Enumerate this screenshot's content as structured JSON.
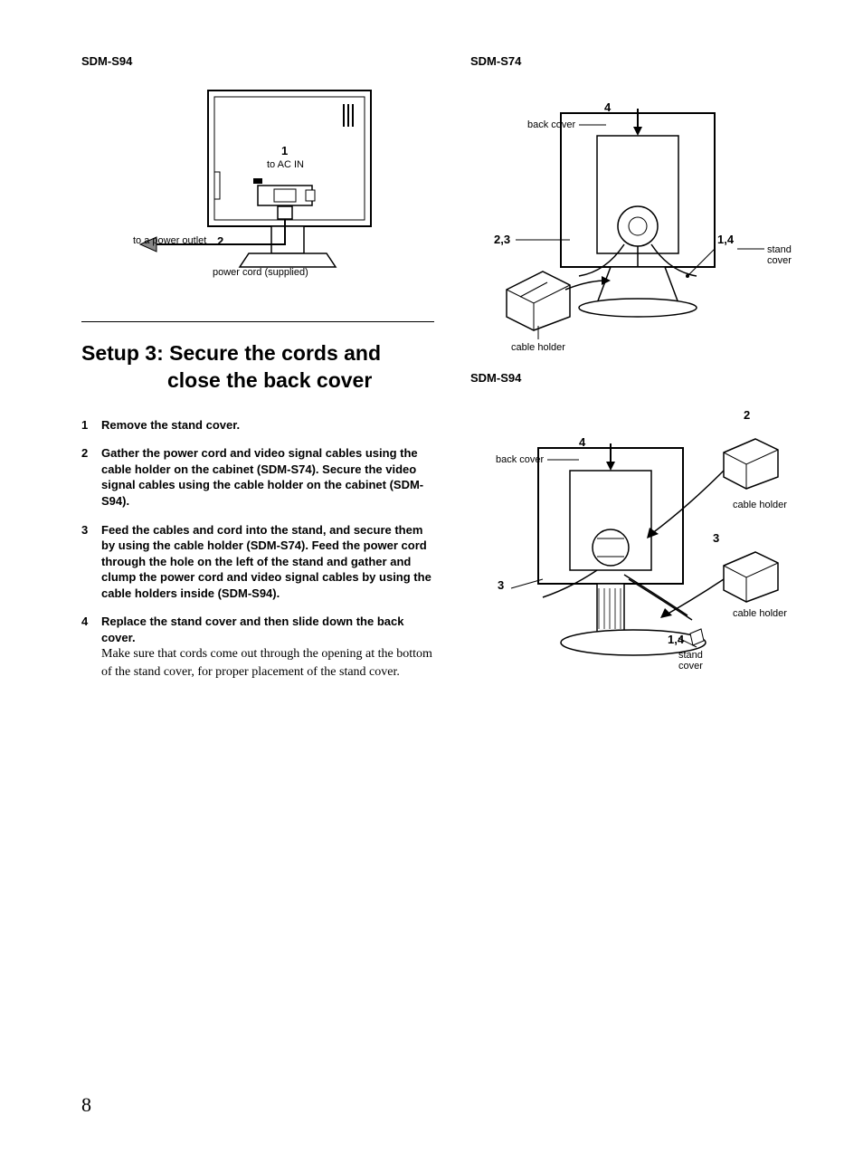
{
  "page_number": "8",
  "left": {
    "model": "SDM-S94",
    "fig1": {
      "num1": "1",
      "to_ac_in": "to AC IN",
      "num2": "2",
      "to_outlet": "to a power outlet",
      "power_cord": "power cord (supplied)"
    },
    "setup_title_line1": "Setup 3: Secure the cords and",
    "setup_title_line2": "close the back cover",
    "steps": [
      {
        "num": "1",
        "bold": "Remove the stand cover.",
        "note": ""
      },
      {
        "num": "2",
        "bold": "Gather the power cord and video signal cables using the cable holder on the cabinet (SDM-S74). Secure the video signal cables using the cable holder on the cabinet (SDM-S94).",
        "note": ""
      },
      {
        "num": "3",
        "bold": "Feed the cables and cord into the stand, and secure them by using the cable holder (SDM-S74). Feed the power cord through the hole on the left of the stand and gather and clump the power cord and video signal cables by using the cable holders inside (SDM-S94).",
        "note": ""
      },
      {
        "num": "4",
        "bold": "Replace the stand cover and then slide down the back cover.",
        "note": "Make sure that cords come out through the opening at the bottom of the stand cover, for proper placement of the stand cover."
      }
    ]
  },
  "right": {
    "model1": "SDM-S74",
    "fig2": {
      "num4": "4",
      "back_cover": "back cover",
      "num23": "2,3",
      "num14": "1,4",
      "stand_cover": "stand cover",
      "cable_holder": "cable holder"
    },
    "model2": "SDM-S94",
    "fig3": {
      "num2": "2",
      "num4": "4",
      "back_cover": "back cover",
      "num3a": "3",
      "num3b": "3",
      "cable_holder1": "cable holder",
      "cable_holder2": "cable holder",
      "num14": "1,4",
      "stand_cover": "stand cover"
    }
  },
  "colors": {
    "text": "#000000",
    "bg": "#ffffff",
    "line": "#000000"
  }
}
